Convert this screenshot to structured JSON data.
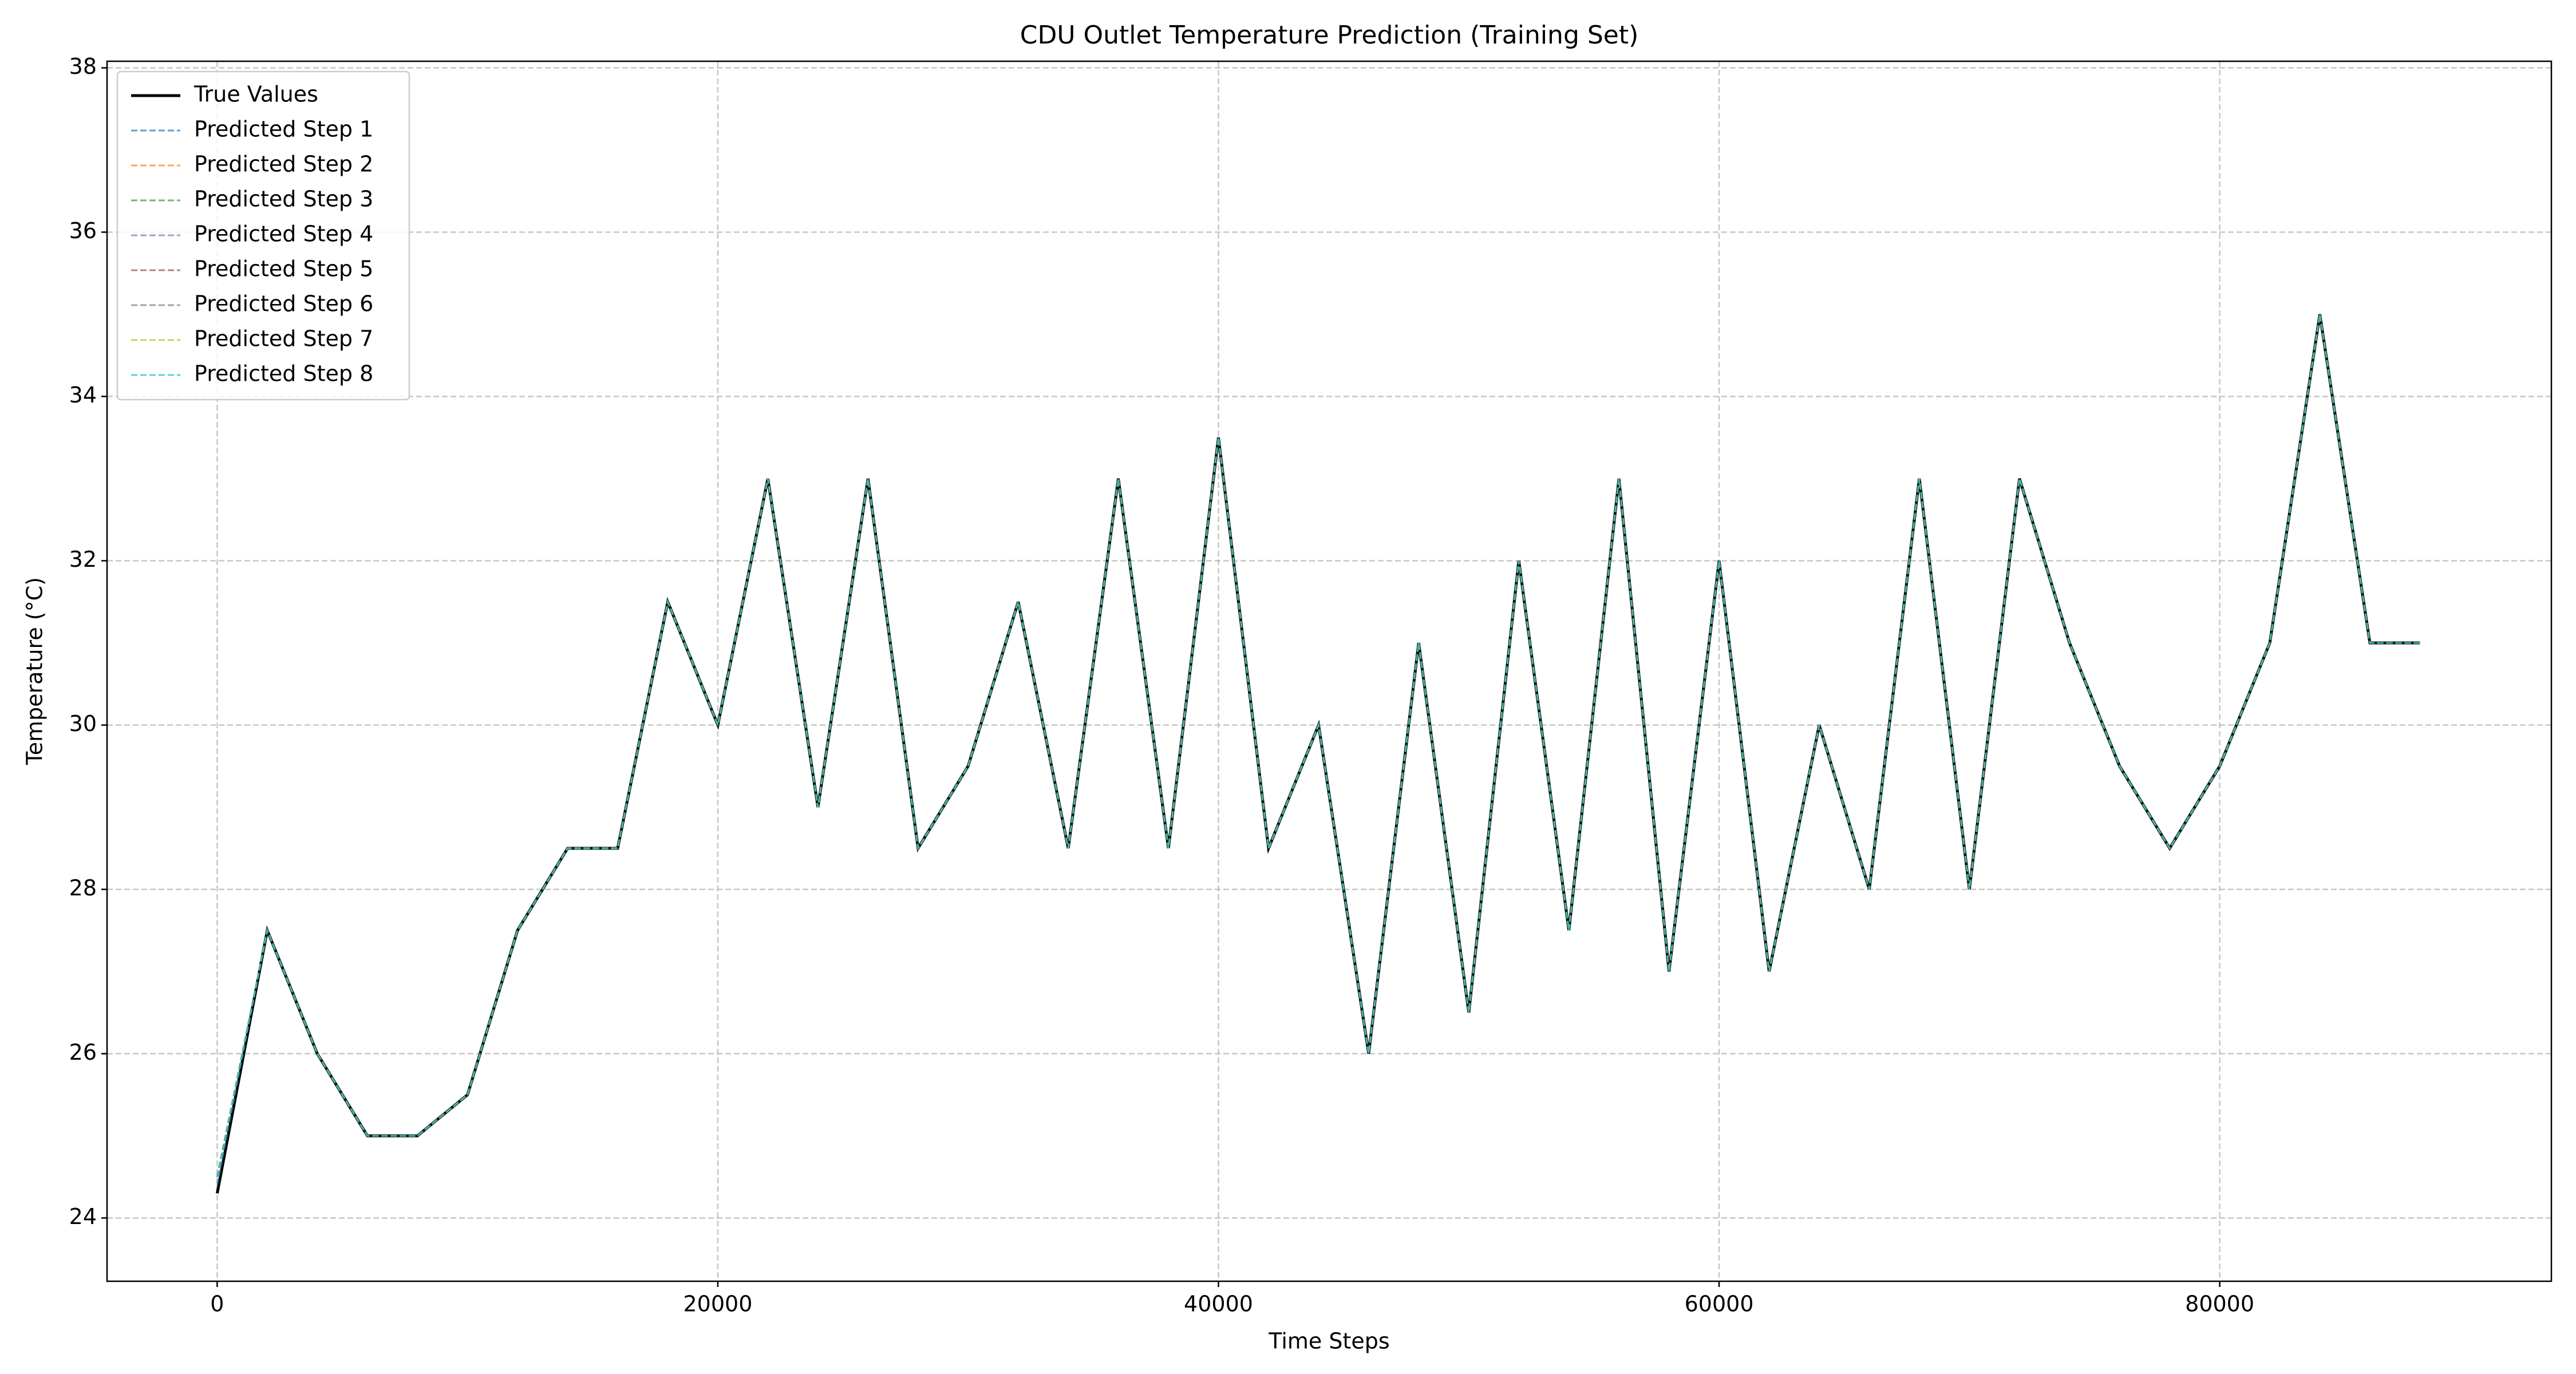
{
  "chart_data": {
    "type": "line",
    "title": "CDU Outlet Temperature Prediction (Training Set)",
    "x_label": "Time Steps",
    "y_label": "Temperature (°C)",
    "x": [
      0,
      2000,
      4000,
      6000,
      8000,
      10000,
      12000,
      14000,
      16000,
      18000,
      20000,
      22000,
      24000,
      26000,
      28000,
      30000,
      32000,
      34000,
      36000,
      38000,
      40000,
      42000,
      44000,
      46000,
      48000,
      50000,
      52000,
      54000,
      56000,
      58000,
      60000,
      62000,
      64000,
      66000,
      68000,
      70000,
      72000,
      74000,
      76000,
      78000,
      80000,
      82000,
      84000,
      86000,
      88000
    ],
    "series": [
      {
        "name": "True Values",
        "color": "#000000",
        "values": [
          24.3,
          27.5,
          26.0,
          25.0,
          25.0,
          25.5,
          27.5,
          28.5,
          28.5,
          31.5,
          30.0,
          33.0,
          29.0,
          33.0,
          28.5,
          29.5,
          31.5,
          28.5,
          33.0,
          28.5,
          33.5,
          28.5,
          30.0,
          26.0,
          31.0,
          26.5,
          32.0,
          27.5,
          33.0,
          27.0,
          32.0,
          27.0,
          30.0,
          28.0,
          33.0,
          28.0,
          33.0,
          31.0,
          29.5,
          28.5,
          29.5,
          31.0,
          35.0,
          31.0,
          31.0
        ]
      },
      {
        "name": "Predicted Step 1",
        "color": "#1f77b4",
        "values": [
          24.4,
          27.5,
          26.0,
          25.0,
          25.0,
          25.5,
          27.5,
          28.5,
          28.5,
          31.5,
          30.0,
          33.0,
          29.0,
          33.0,
          28.5,
          29.5,
          31.5,
          28.5,
          33.0,
          28.5,
          33.5,
          28.5,
          30.0,
          26.0,
          31.0,
          26.5,
          32.0,
          27.5,
          33.0,
          27.0,
          32.0,
          27.0,
          30.0,
          28.0,
          33.0,
          28.0,
          33.0,
          31.0,
          29.5,
          28.5,
          29.5,
          31.0,
          35.0,
          31.0,
          31.0
        ]
      },
      {
        "name": "Predicted Step 2",
        "color": "#ff7f0e",
        "values": [
          24.5,
          27.5,
          26.0,
          25.0,
          25.0,
          25.5,
          27.5,
          28.5,
          28.5,
          31.5,
          30.0,
          33.0,
          29.0,
          33.0,
          28.5,
          29.5,
          31.5,
          28.5,
          33.0,
          28.5,
          33.5,
          28.5,
          30.0,
          26.0,
          31.0,
          26.5,
          32.0,
          27.5,
          33.0,
          27.0,
          32.0,
          27.0,
          30.0,
          28.0,
          33.0,
          28.0,
          33.0,
          31.0,
          29.5,
          28.5,
          29.5,
          31.0,
          35.0,
          31.0,
          31.0
        ]
      },
      {
        "name": "Predicted Step 3",
        "color": "#2ca02c",
        "values": [
          24.5,
          27.5,
          26.0,
          25.0,
          25.0,
          25.5,
          27.5,
          28.5,
          28.5,
          31.5,
          30.0,
          33.0,
          29.0,
          33.0,
          28.5,
          29.5,
          31.5,
          28.5,
          33.0,
          28.5,
          33.5,
          28.5,
          30.0,
          26.0,
          31.0,
          26.5,
          32.0,
          27.5,
          33.0,
          27.0,
          32.0,
          27.0,
          30.0,
          28.0,
          33.0,
          28.0,
          33.0,
          31.0,
          29.5,
          28.5,
          29.5,
          31.0,
          35.0,
          31.0,
          31.0
        ]
      },
      {
        "name": "Predicted Step 4",
        "color": "#9467bd",
        "values": [
          24.5,
          27.5,
          26.0,
          25.0,
          25.0,
          25.5,
          27.5,
          28.5,
          28.5,
          31.5,
          30.0,
          33.0,
          29.0,
          33.0,
          28.5,
          29.5,
          31.5,
          28.5,
          33.0,
          28.5,
          33.5,
          28.5,
          30.0,
          26.0,
          31.0,
          26.5,
          32.0,
          27.5,
          33.0,
          27.0,
          32.0,
          27.0,
          30.0,
          28.0,
          33.0,
          28.0,
          33.0,
          31.0,
          29.5,
          28.5,
          29.5,
          31.0,
          35.0,
          31.0,
          31.0
        ]
      },
      {
        "name": "Predicted Step 5",
        "color": "#8c564b",
        "values": [
          24.5,
          27.5,
          26.0,
          25.0,
          25.0,
          25.5,
          27.5,
          28.5,
          28.5,
          31.5,
          30.0,
          33.0,
          29.0,
          33.0,
          28.5,
          29.5,
          31.5,
          28.5,
          33.0,
          28.5,
          33.5,
          28.5,
          30.0,
          26.0,
          31.0,
          26.5,
          32.0,
          27.5,
          33.0,
          27.0,
          32.0,
          27.0,
          30.0,
          28.0,
          33.0,
          28.0,
          33.0,
          31.0,
          29.5,
          28.5,
          29.5,
          31.0,
          35.0,
          31.0,
          31.0
        ]
      },
      {
        "name": "Predicted Step 6",
        "color": "#7f7f7f",
        "values": [
          24.5,
          27.5,
          26.0,
          25.0,
          25.0,
          25.5,
          27.5,
          28.5,
          28.5,
          31.5,
          30.0,
          33.0,
          29.0,
          33.0,
          28.5,
          29.5,
          31.5,
          28.5,
          33.0,
          28.5,
          33.5,
          28.5,
          30.0,
          26.0,
          31.0,
          26.5,
          32.0,
          27.5,
          33.0,
          27.0,
          32.0,
          27.0,
          30.0,
          28.0,
          33.0,
          28.0,
          33.0,
          31.0,
          29.5,
          28.5,
          29.5,
          31.0,
          35.0,
          31.0,
          31.0
        ]
      },
      {
        "name": "Predicted Step 7",
        "color": "#bcbd22",
        "values": [
          24.5,
          27.5,
          26.0,
          25.0,
          25.0,
          25.5,
          27.5,
          28.5,
          28.5,
          31.5,
          30.0,
          33.0,
          29.0,
          33.0,
          28.5,
          29.5,
          31.5,
          28.5,
          33.0,
          28.5,
          33.5,
          28.5,
          30.0,
          26.0,
          31.0,
          26.5,
          32.0,
          27.5,
          33.0,
          27.0,
          32.0,
          27.0,
          30.0,
          28.0,
          33.0,
          28.0,
          33.0,
          31.0,
          29.5,
          28.5,
          29.5,
          31.0,
          35.0,
          31.0,
          31.0
        ]
      },
      {
        "name": "Predicted Step 8",
        "color": "#17becf",
        "values": [
          24.5,
          27.5,
          26.0,
          25.0,
          25.0,
          25.5,
          27.5,
          28.5,
          28.5,
          31.5,
          30.0,
          33.0,
          29.0,
          33.0,
          28.5,
          29.5,
          31.5,
          28.5,
          33.0,
          28.5,
          33.5,
          28.5,
          30.0,
          26.0,
          31.0,
          26.5,
          32.0,
          27.5,
          33.0,
          27.0,
          32.0,
          27.0,
          30.0,
          28.0,
          33.0,
          28.0,
          33.0,
          31.0,
          29.5,
          28.5,
          29.5,
          31.0,
          35.0,
          31.0,
          31.0
        ]
      }
    ],
    "xlim": [
      -4400,
      93250
    ],
    "xticks": [
      0,
      20000,
      40000,
      60000,
      80000
    ],
    "ylim": [
      23.23,
      38.08
    ],
    "yticks": [
      24,
      26,
      28,
      30,
      32,
      34,
      36,
      38
    ],
    "grid": true,
    "legend": "upper-left"
  }
}
